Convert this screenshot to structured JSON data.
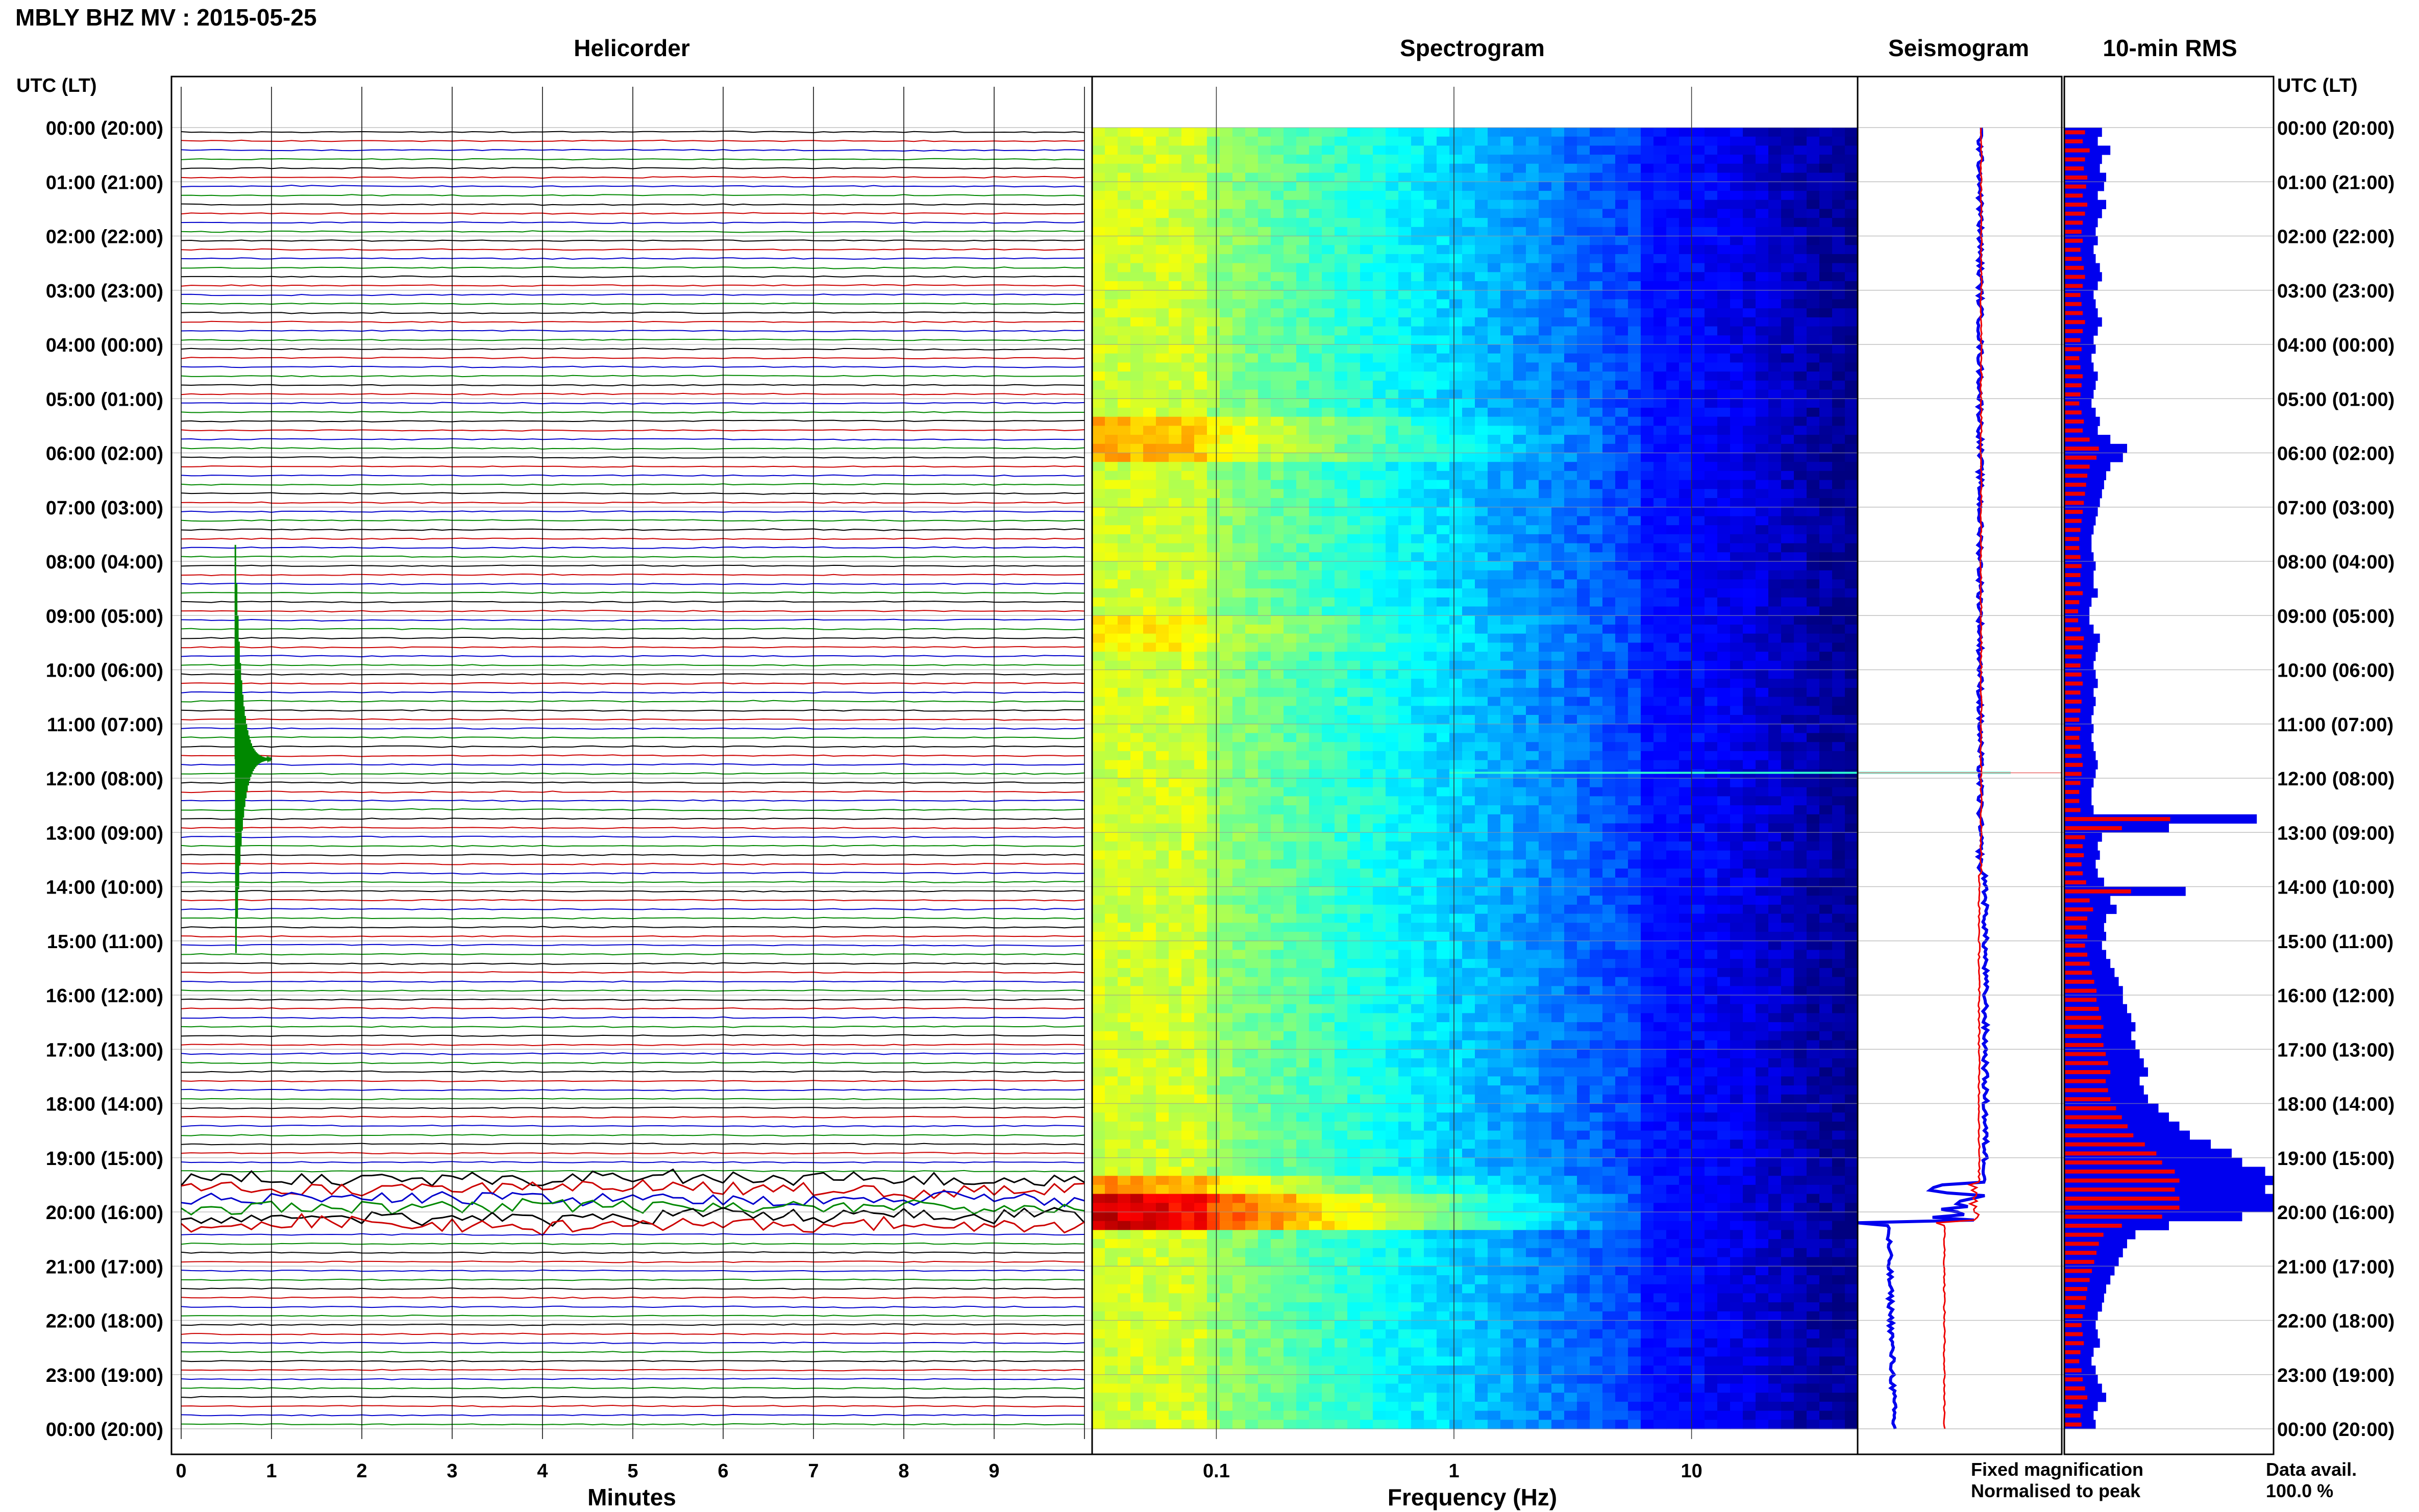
{
  "header": {
    "station_title": "MBLY BHZ MV : 2015-05-25"
  },
  "panels": {
    "helicorder_title": "Helicorder",
    "spectrogram_title": "Spectrogram",
    "seismogram_title": "Seismogram",
    "rms_title": "10-min RMS"
  },
  "axes": {
    "left_time_header": "UTC (LT)",
    "right_time_header": "UTC (LT)",
    "minutes_label": "Minutes",
    "frequency_label": "Frequency (Hz)"
  },
  "time_labels": [
    "00:00 (20:00)",
    "01:00 (21:00)",
    "02:00 (22:00)",
    "03:00 (23:00)",
    "04:00 (00:00)",
    "05:00 (01:00)",
    "06:00 (02:00)",
    "07:00 (03:00)",
    "08:00 (04:00)",
    "09:00 (05:00)",
    "10:00 (06:00)",
    "11:00 (07:00)",
    "12:00 (08:00)",
    "13:00 (09:00)",
    "14:00 (10:00)",
    "15:00 (11:00)",
    "16:00 (12:00)",
    "17:00 (13:00)",
    "18:00 (14:00)",
    "19:00 (15:00)",
    "20:00 (16:00)",
    "21:00 (17:00)",
    "22:00 (18:00)",
    "23:00 (19:00)",
    "00:00 (20:00)"
  ],
  "minute_ticks": [
    "0",
    "1",
    "2",
    "3",
    "4",
    "5",
    "6",
    "7",
    "8",
    "9"
  ],
  "frequency_ticks": [
    "0.1",
    "1",
    "10"
  ],
  "legend": {
    "fixed_label": "Fixed magnification",
    "fixed_color": "#0000ee",
    "normalised_label": "Normalised to peak",
    "normalised_color": "#ee0000",
    "data_avail_label": "Data avail.",
    "data_avail_value": "100.0 %"
  },
  "colors": {
    "trace_cycle": [
      "#000000",
      "#cc0000",
      "#0000cc",
      "#008800"
    ],
    "spectrogram_base": "#1010c0"
  },
  "chart_data": [
    {
      "type": "line",
      "name": "helicorder",
      "x_unit": "minutes",
      "xlim": [
        0,
        10
      ],
      "y_unit": "hour of day (UTC)",
      "ylim": [
        0,
        24
      ],
      "lines_per_hour": 6,
      "events": [
        {
          "hour": 11.6,
          "minute": 0.6,
          "amplitude": "large",
          "color": "green"
        },
        {
          "hour": 19.75,
          "minute": 0,
          "duration_minutes": 10,
          "amplitude": "high noise burst"
        }
      ]
    },
    {
      "type": "heatmap",
      "name": "spectrogram",
      "x_scale": "log",
      "xlim": [
        0.03,
        50
      ],
      "x_ticks": [
        0.1,
        1,
        10
      ],
      "y_unit": "hour of day (UTC)",
      "ylim": [
        0,
        24
      ],
      "colormap": "jet",
      "high_energy_rows": [
        {
          "hour_start": 19.6,
          "hour_end": 20.2,
          "level": "max"
        },
        {
          "hour_start": 5.2,
          "hour_end": 6.1,
          "level": "high"
        },
        {
          "hour_start": 11.9,
          "hour_end": 11.95,
          "level": "narrow line"
        }
      ]
    },
    {
      "type": "line",
      "name": "seismogram",
      "series": [
        {
          "name": "Fixed magnification",
          "color": "#0000ee"
        },
        {
          "name": "Normalised to peak",
          "color": "#ee0000"
        }
      ],
      "steps": [
        {
          "hour": 13.8,
          "offset": "small"
        },
        {
          "hour": 20.2,
          "offset": "large"
        }
      ]
    },
    {
      "type": "bar",
      "name": "10-min RMS",
      "orientation": "horizontal",
      "y_unit": "hour of day (UTC)",
      "bins_per_hour": 6,
      "relative_values": [
        0.18,
        0.16,
        0.22,
        0.18,
        0.17,
        0.2,
        0.19,
        0.16,
        0.2,
        0.18,
        0.16,
        0.15,
        0.16,
        0.14,
        0.15,
        0.17,
        0.18,
        0.16,
        0.14,
        0.15,
        0.16,
        0.18,
        0.16,
        0.14,
        0.15,
        0.13,
        0.14,
        0.16,
        0.15,
        0.14,
        0.13,
        0.15,
        0.17,
        0.16,
        0.22,
        0.3,
        0.28,
        0.22,
        0.2,
        0.19,
        0.18,
        0.17,
        0.16,
        0.15,
        0.14,
        0.13,
        0.13,
        0.14,
        0.15,
        0.14,
        0.14,
        0.16,
        0.13,
        0.12,
        0.12,
        0.14,
        0.17,
        0.16,
        0.15,
        0.14,
        0.15,
        0.16,
        0.14,
        0.15,
        0.14,
        0.13,
        0.14,
        0.13,
        0.14,
        0.15,
        0.16,
        0.15,
        0.14,
        0.13,
        0.13,
        0.14,
        0.92,
        0.5,
        0.18,
        0.16,
        0.17,
        0.15,
        0.16,
        0.19,
        0.58,
        0.22,
        0.25,
        0.2,
        0.19,
        0.2,
        0.18,
        0.2,
        0.22,
        0.24,
        0.26,
        0.28,
        0.28,
        0.3,
        0.32,
        0.34,
        0.32,
        0.34,
        0.36,
        0.38,
        0.4,
        0.36,
        0.38,
        0.4,
        0.45,
        0.5,
        0.55,
        0.6,
        0.7,
        0.8,
        0.85,
        0.96,
        1.0,
        0.96,
        1.0,
        1.0,
        0.85,
        0.5,
        0.34,
        0.3,
        0.28,
        0.26,
        0.24,
        0.22,
        0.2,
        0.19,
        0.18,
        0.16,
        0.15,
        0.16,
        0.17,
        0.14,
        0.13,
        0.15,
        0.16,
        0.18,
        0.2,
        0.16,
        0.14,
        0.15
      ]
    }
  ]
}
